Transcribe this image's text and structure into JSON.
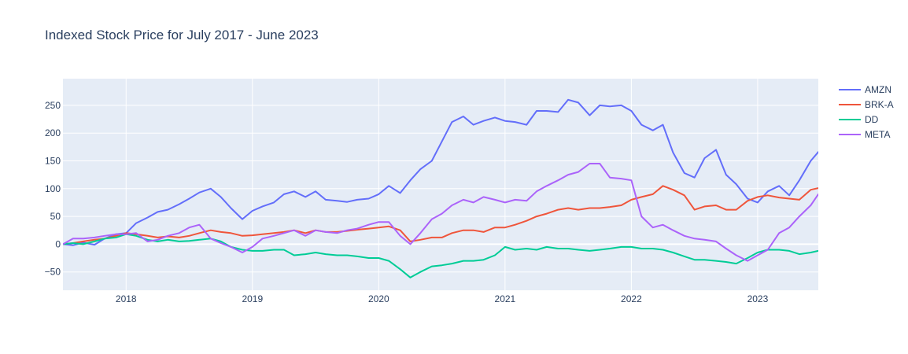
{
  "chart_data": {
    "type": "line",
    "title": "Indexed Stock Price for July 2017 - June 2023",
    "xlabel": "",
    "ylabel": "",
    "xlim": [
      2017.5,
      2023.48
    ],
    "ylim": [
      -83,
      298
    ],
    "x_ticks": [
      {
        "label": "2018",
        "value": 2018.0
      },
      {
        "label": "2019",
        "value": 2019.0
      },
      {
        "label": "2020",
        "value": 2020.0
      },
      {
        "label": "2021",
        "value": 2021.0
      },
      {
        "label": "2022",
        "value": 2022.0
      },
      {
        "label": "2023",
        "value": 2023.0
      }
    ],
    "y_ticks": [
      {
        "label": "250",
        "value": 250
      },
      {
        "label": "200",
        "value": 200
      },
      {
        "label": "150",
        "value": 150
      },
      {
        "label": "100",
        "value": 100
      },
      {
        "label": "50",
        "value": 50
      },
      {
        "label": "0",
        "value": 0
      },
      {
        "label": "−50",
        "value": -50
      }
    ],
    "grid": true,
    "legend_position": "top-right",
    "series": [
      {
        "name": "AMZN",
        "color": "#636efa",
        "points": [
          [
            2017.5,
            0
          ],
          [
            2017.58,
            -2
          ],
          [
            2017.66,
            3
          ],
          [
            2017.75,
            -1
          ],
          [
            2017.83,
            10
          ],
          [
            2017.92,
            18
          ],
          [
            2018.0,
            20
          ],
          [
            2018.08,
            38
          ],
          [
            2018.17,
            48
          ],
          [
            2018.25,
            58
          ],
          [
            2018.33,
            62
          ],
          [
            2018.42,
            72
          ],
          [
            2018.5,
            82
          ],
          [
            2018.58,
            93
          ],
          [
            2018.67,
            100
          ],
          [
            2018.75,
            85
          ],
          [
            2018.83,
            65
          ],
          [
            2018.92,
            45
          ],
          [
            2019.0,
            60
          ],
          [
            2019.08,
            68
          ],
          [
            2019.17,
            75
          ],
          [
            2019.25,
            90
          ],
          [
            2019.33,
            95
          ],
          [
            2019.42,
            85
          ],
          [
            2019.5,
            95
          ],
          [
            2019.58,
            80
          ],
          [
            2019.67,
            78
          ],
          [
            2019.75,
            76
          ],
          [
            2019.83,
            80
          ],
          [
            2019.92,
            82
          ],
          [
            2020.0,
            90
          ],
          [
            2020.08,
            105
          ],
          [
            2020.17,
            92
          ],
          [
            2020.25,
            115
          ],
          [
            2020.33,
            135
          ],
          [
            2020.42,
            150
          ],
          [
            2020.5,
            185
          ],
          [
            2020.58,
            220
          ],
          [
            2020.67,
            230
          ],
          [
            2020.75,
            215
          ],
          [
            2020.83,
            222
          ],
          [
            2020.92,
            228
          ],
          [
            2021.0,
            222
          ],
          [
            2021.08,
            220
          ],
          [
            2021.17,
            215
          ],
          [
            2021.25,
            240
          ],
          [
            2021.33,
            240
          ],
          [
            2021.42,
            238
          ],
          [
            2021.5,
            260
          ],
          [
            2021.58,
            255
          ],
          [
            2021.67,
            232
          ],
          [
            2021.75,
            250
          ],
          [
            2021.83,
            248
          ],
          [
            2021.92,
            250
          ],
          [
            2022.0,
            240
          ],
          [
            2022.08,
            215
          ],
          [
            2022.17,
            205
          ],
          [
            2022.25,
            215
          ],
          [
            2022.33,
            165
          ],
          [
            2022.42,
            128
          ],
          [
            2022.5,
            120
          ],
          [
            2022.58,
            155
          ],
          [
            2022.67,
            170
          ],
          [
            2022.75,
            125
          ],
          [
            2022.83,
            108
          ],
          [
            2022.92,
            82
          ],
          [
            2023.0,
            75
          ],
          [
            2023.08,
            95
          ],
          [
            2023.17,
            105
          ],
          [
            2023.25,
            88
          ],
          [
            2023.33,
            115
          ],
          [
            2023.42,
            150
          ],
          [
            2023.48,
            166
          ]
        ]
      },
      {
        "name": "BRK-A",
        "color": "#ef553b",
        "points": [
          [
            2017.5,
            0
          ],
          [
            2017.58,
            2
          ],
          [
            2017.66,
            5
          ],
          [
            2017.75,
            8
          ],
          [
            2017.83,
            10
          ],
          [
            2017.92,
            15
          ],
          [
            2018.0,
            20
          ],
          [
            2018.08,
            18
          ],
          [
            2018.17,
            15
          ],
          [
            2018.25,
            12
          ],
          [
            2018.33,
            14
          ],
          [
            2018.42,
            12
          ],
          [
            2018.5,
            15
          ],
          [
            2018.58,
            20
          ],
          [
            2018.67,
            25
          ],
          [
            2018.75,
            22
          ],
          [
            2018.83,
            20
          ],
          [
            2018.92,
            15
          ],
          [
            2019.0,
            16
          ],
          [
            2019.08,
            18
          ],
          [
            2019.17,
            20
          ],
          [
            2019.25,
            22
          ],
          [
            2019.33,
            25
          ],
          [
            2019.42,
            20
          ],
          [
            2019.5,
            25
          ],
          [
            2019.58,
            22
          ],
          [
            2019.67,
            22
          ],
          [
            2019.75,
            24
          ],
          [
            2019.83,
            26
          ],
          [
            2019.92,
            28
          ],
          [
            2020.0,
            30
          ],
          [
            2020.08,
            32
          ],
          [
            2020.17,
            25
          ],
          [
            2020.25,
            5
          ],
          [
            2020.33,
            8
          ],
          [
            2020.42,
            12
          ],
          [
            2020.5,
            12
          ],
          [
            2020.58,
            20
          ],
          [
            2020.67,
            25
          ],
          [
            2020.75,
            25
          ],
          [
            2020.83,
            22
          ],
          [
            2020.92,
            30
          ],
          [
            2021.0,
            30
          ],
          [
            2021.08,
            35
          ],
          [
            2021.17,
            42
          ],
          [
            2021.25,
            50
          ],
          [
            2021.33,
            55
          ],
          [
            2021.42,
            62
          ],
          [
            2021.5,
            65
          ],
          [
            2021.58,
            62
          ],
          [
            2021.67,
            65
          ],
          [
            2021.75,
            65
          ],
          [
            2021.83,
            67
          ],
          [
            2021.92,
            70
          ],
          [
            2022.0,
            80
          ],
          [
            2022.08,
            85
          ],
          [
            2022.17,
            90
          ],
          [
            2022.25,
            105
          ],
          [
            2022.33,
            98
          ],
          [
            2022.42,
            88
          ],
          [
            2022.5,
            62
          ],
          [
            2022.58,
            68
          ],
          [
            2022.67,
            70
          ],
          [
            2022.75,
            62
          ],
          [
            2022.83,
            62
          ],
          [
            2022.92,
            78
          ],
          [
            2023.0,
            85
          ],
          [
            2023.08,
            88
          ],
          [
            2023.17,
            84
          ],
          [
            2023.25,
            82
          ],
          [
            2023.33,
            80
          ],
          [
            2023.42,
            98
          ],
          [
            2023.48,
            101
          ]
        ]
      },
      {
        "name": "DD",
        "color": "#00cc96",
        "points": [
          [
            2017.5,
            0
          ],
          [
            2017.58,
            2
          ],
          [
            2017.66,
            0
          ],
          [
            2017.75,
            5
          ],
          [
            2017.83,
            10
          ],
          [
            2017.92,
            12
          ],
          [
            2018.0,
            18
          ],
          [
            2018.08,
            15
          ],
          [
            2018.17,
            8
          ],
          [
            2018.25,
            5
          ],
          [
            2018.33,
            8
          ],
          [
            2018.42,
            5
          ],
          [
            2018.5,
            6
          ],
          [
            2018.58,
            8
          ],
          [
            2018.67,
            10
          ],
          [
            2018.75,
            5
          ],
          [
            2018.83,
            -5
          ],
          [
            2018.92,
            -10
          ],
          [
            2019.0,
            -12
          ],
          [
            2019.08,
            -12
          ],
          [
            2019.17,
            -10
          ],
          [
            2019.25,
            -10
          ],
          [
            2019.33,
            -20
          ],
          [
            2019.42,
            -18
          ],
          [
            2019.5,
            -15
          ],
          [
            2019.58,
            -18
          ],
          [
            2019.67,
            -20
          ],
          [
            2019.75,
            -20
          ],
          [
            2019.83,
            -22
          ],
          [
            2019.92,
            -25
          ],
          [
            2020.0,
            -25
          ],
          [
            2020.08,
            -30
          ],
          [
            2020.17,
            -45
          ],
          [
            2020.25,
            -60
          ],
          [
            2020.33,
            -50
          ],
          [
            2020.42,
            -40
          ],
          [
            2020.5,
            -38
          ],
          [
            2020.58,
            -35
          ],
          [
            2020.67,
            -30
          ],
          [
            2020.75,
            -30
          ],
          [
            2020.83,
            -28
          ],
          [
            2020.92,
            -20
          ],
          [
            2021.0,
            -5
          ],
          [
            2021.08,
            -10
          ],
          [
            2021.17,
            -8
          ],
          [
            2021.25,
            -10
          ],
          [
            2021.33,
            -5
          ],
          [
            2021.42,
            -8
          ],
          [
            2021.5,
            -8
          ],
          [
            2021.58,
            -10
          ],
          [
            2021.67,
            -12
          ],
          [
            2021.75,
            -10
          ],
          [
            2021.83,
            -8
          ],
          [
            2021.92,
            -5
          ],
          [
            2022.0,
            -5
          ],
          [
            2022.08,
            -8
          ],
          [
            2022.17,
            -8
          ],
          [
            2022.25,
            -10
          ],
          [
            2022.33,
            -15
          ],
          [
            2022.42,
            -22
          ],
          [
            2022.5,
            -28
          ],
          [
            2022.58,
            -28
          ],
          [
            2022.67,
            -30
          ],
          [
            2022.75,
            -32
          ],
          [
            2022.83,
            -35
          ],
          [
            2022.92,
            -25
          ],
          [
            2023.0,
            -15
          ],
          [
            2023.08,
            -10
          ],
          [
            2023.17,
            -10
          ],
          [
            2023.25,
            -12
          ],
          [
            2023.33,
            -18
          ],
          [
            2023.42,
            -15
          ],
          [
            2023.48,
            -12
          ]
        ]
      },
      {
        "name": "META",
        "color": "#ab63fa",
        "points": [
          [
            2017.5,
            0
          ],
          [
            2017.58,
            10
          ],
          [
            2017.66,
            10
          ],
          [
            2017.75,
            12
          ],
          [
            2017.83,
            15
          ],
          [
            2017.92,
            18
          ],
          [
            2018.0,
            18
          ],
          [
            2018.08,
            20
          ],
          [
            2018.17,
            5
          ],
          [
            2018.25,
            8
          ],
          [
            2018.33,
            15
          ],
          [
            2018.42,
            20
          ],
          [
            2018.5,
            30
          ],
          [
            2018.58,
            35
          ],
          [
            2018.67,
            10
          ],
          [
            2018.75,
            2
          ],
          [
            2018.83,
            -5
          ],
          [
            2018.92,
            -15
          ],
          [
            2019.0,
            -5
          ],
          [
            2019.08,
            10
          ],
          [
            2019.17,
            15
          ],
          [
            2019.25,
            20
          ],
          [
            2019.33,
            25
          ],
          [
            2019.42,
            15
          ],
          [
            2019.5,
            25
          ],
          [
            2019.58,
            22
          ],
          [
            2019.67,
            20
          ],
          [
            2019.75,
            25
          ],
          [
            2019.83,
            28
          ],
          [
            2019.92,
            35
          ],
          [
            2020.0,
            40
          ],
          [
            2020.08,
            40
          ],
          [
            2020.17,
            15
          ],
          [
            2020.25,
            0
          ],
          [
            2020.33,
            20
          ],
          [
            2020.42,
            45
          ],
          [
            2020.5,
            55
          ],
          [
            2020.58,
            70
          ],
          [
            2020.67,
            80
          ],
          [
            2020.75,
            75
          ],
          [
            2020.83,
            85
          ],
          [
            2020.92,
            80
          ],
          [
            2021.0,
            75
          ],
          [
            2021.08,
            80
          ],
          [
            2021.17,
            78
          ],
          [
            2021.25,
            95
          ],
          [
            2021.33,
            105
          ],
          [
            2021.42,
            115
          ],
          [
            2021.5,
            125
          ],
          [
            2021.58,
            130
          ],
          [
            2021.67,
            145
          ],
          [
            2021.75,
            145
          ],
          [
            2021.83,
            120
          ],
          [
            2021.92,
            118
          ],
          [
            2022.0,
            115
          ],
          [
            2022.08,
            50
          ],
          [
            2022.17,
            30
          ],
          [
            2022.25,
            35
          ],
          [
            2022.33,
            25
          ],
          [
            2022.42,
            15
          ],
          [
            2022.5,
            10
          ],
          [
            2022.58,
            8
          ],
          [
            2022.67,
            5
          ],
          [
            2022.75,
            -8
          ],
          [
            2022.83,
            -20
          ],
          [
            2022.92,
            -30
          ],
          [
            2023.0,
            -20
          ],
          [
            2023.08,
            -10
          ],
          [
            2023.17,
            20
          ],
          [
            2023.25,
            30
          ],
          [
            2023.33,
            50
          ],
          [
            2023.42,
            70
          ],
          [
            2023.48,
            90
          ]
        ]
      }
    ]
  }
}
